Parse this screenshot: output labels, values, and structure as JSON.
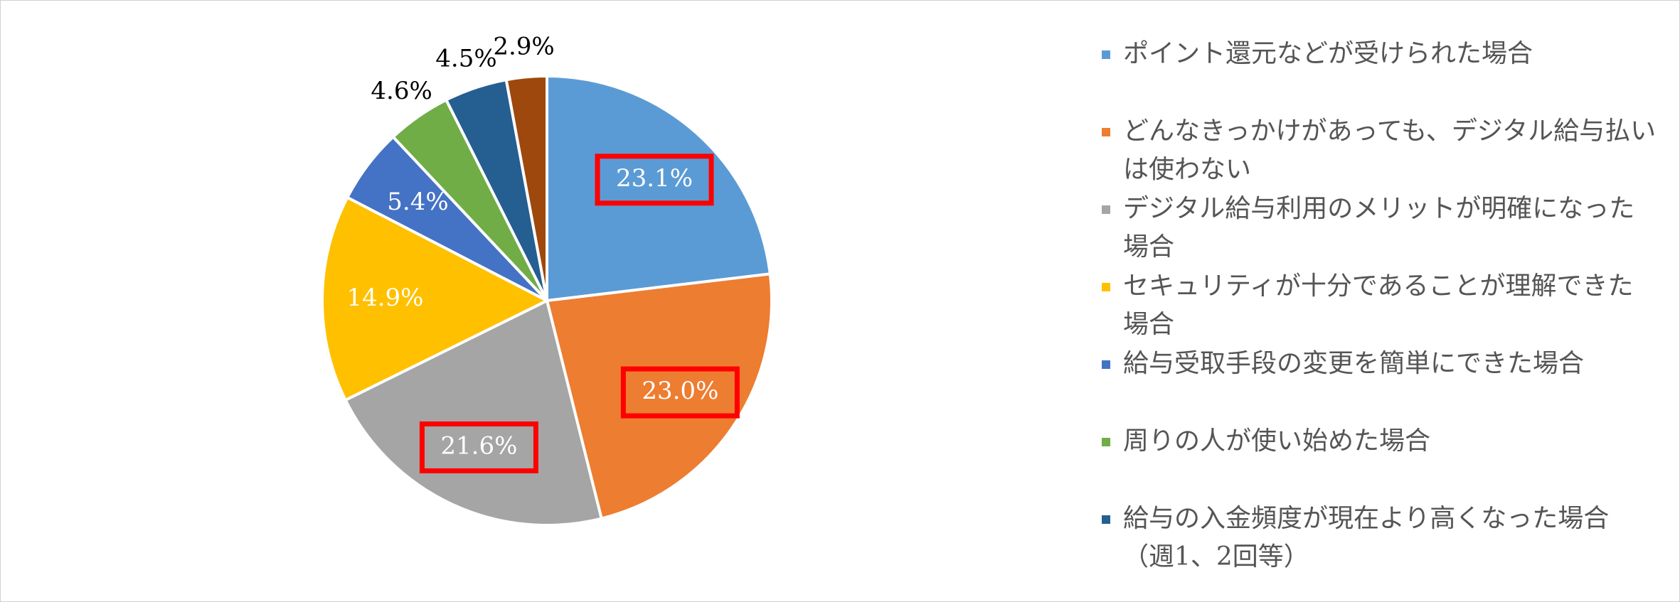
{
  "chart_data": {
    "type": "pie",
    "categories": [
      "ポイント還元などが受けられた場合",
      "どんなきっかけがあっても、デジタル給与払いは使わない",
      "デジタル給与利用のメリットが明確になった場合",
      "セキュリティが十分であることが理解できた場合",
      "給与受取手段の変更を簡単にできた場合",
      "周りの人が使い始めた場合",
      "給与の入金頻度が現在より高くなった場合（週1、2回等）",
      null
    ],
    "values": [
      23.1,
      23.0,
      21.6,
      14.9,
      5.4,
      4.6,
      4.5,
      2.9
    ],
    "value_labels": [
      "23.1%",
      "23.0%",
      "21.6%",
      "14.9%",
      "5.4%",
      "4.6%",
      "4.5%",
      "2.9%"
    ],
    "colors": [
      "#5b9bd5",
      "#ed7d31",
      "#a5a5a5",
      "#ffc000",
      "#4472c4",
      "#70ad47",
      "#255e91",
      "#9e480e"
    ],
    "highlighted": [
      true,
      true,
      true,
      false,
      false,
      false,
      false,
      false
    ],
    "highlight_color": "#ff0000",
    "legend": "right"
  }
}
